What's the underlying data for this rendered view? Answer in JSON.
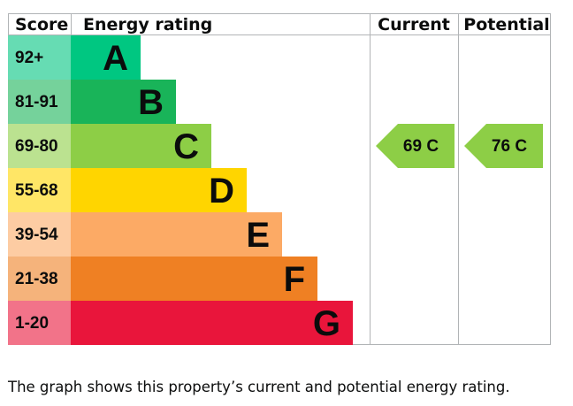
{
  "chart_data": {
    "type": "bar",
    "headers": {
      "score": "Score",
      "rating": "Energy rating",
      "current": "Current",
      "potential": "Potential"
    },
    "bands": [
      {
        "score": "92+",
        "letter": "A",
        "min": 92,
        "max": 100,
        "color": "#00c781",
        "score_bg": "#66dcb3"
      },
      {
        "score": "81-91",
        "letter": "B",
        "min": 81,
        "max": 91,
        "color": "#19b459",
        "score_bg": "#75d29b"
      },
      {
        "score": "69-80",
        "letter": "C",
        "min": 69,
        "max": 80,
        "color": "#8dce46",
        "score_bg": "#bbe290"
      },
      {
        "score": "55-68",
        "letter": "D",
        "min": 55,
        "max": 68,
        "color": "#ffd500",
        "score_bg": "#ffe666"
      },
      {
        "score": "39-54",
        "letter": "E",
        "min": 39,
        "max": 54,
        "color": "#fcaa65",
        "score_bg": "#fdcca3"
      },
      {
        "score": "21-38",
        "letter": "F",
        "min": 21,
        "max": 38,
        "color": "#ef8023",
        "score_bg": "#f5b37b"
      },
      {
        "score": "1-20",
        "letter": "G",
        "min": 1,
        "max": 20,
        "color": "#e9153b",
        "score_bg": "#f27389"
      }
    ],
    "current": {
      "value": 69,
      "band": "C",
      "label": "69 C"
    },
    "potential": {
      "value": 76,
      "band": "C",
      "label": "76 C"
    }
  },
  "caption": "The graph shows this property’s current and potential energy rating."
}
